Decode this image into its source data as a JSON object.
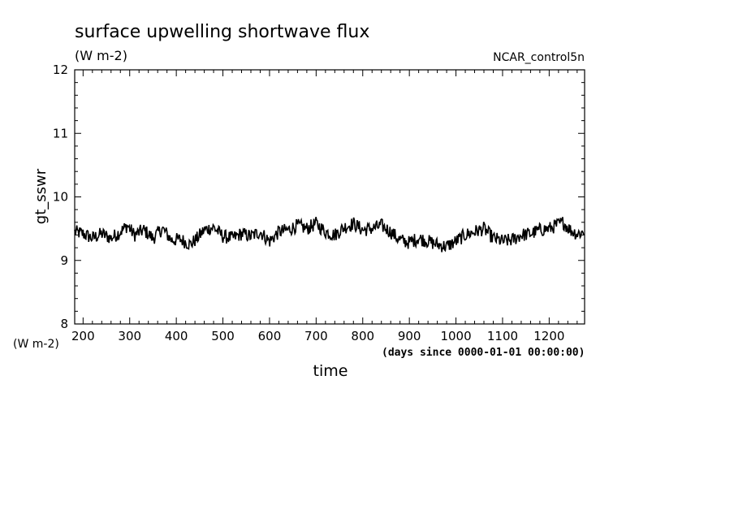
{
  "chart_data": {
    "type": "line",
    "title": "surface upwelling shortwave flux",
    "title_units": "(W m-2)",
    "dataset": "NCAR_control5n",
    "ylabel": "gt_sswr",
    "yunits": "(W m-2)",
    "xlabel": "time",
    "xunits": "(days since 0000-01-01 00:00:00)",
    "xlim": [
      182,
      1276
    ],
    "ylim": [
      8,
      12
    ],
    "x_ticks": [
      200,
      300,
      400,
      500,
      600,
      700,
      800,
      900,
      1000,
      1100,
      1200
    ],
    "y_ticks": [
      8,
      9,
      10,
      11,
      12
    ],
    "grid": false,
    "legend": "none",
    "line_color": "#000000",
    "series": [
      {
        "x": [
          182,
          200,
          220,
          240,
          260,
          280,
          295,
          310,
          330,
          350,
          370,
          390,
          410,
          430,
          445,
          460,
          480,
          500,
          520,
          540,
          560,
          580,
          600,
          620,
          640,
          660,
          680,
          700,
          720,
          740,
          760,
          780,
          800,
          820,
          840,
          860,
          880,
          900,
          920,
          940,
          960,
          980,
          1000,
          1020,
          1040,
          1060,
          1080,
          1100,
          1120,
          1140,
          1160,
          1180,
          1200,
          1215,
          1230,
          1245,
          1260,
          1276
        ],
        "values": [
          9.45,
          9.42,
          9.35,
          9.42,
          9.35,
          9.45,
          9.55,
          9.4,
          9.48,
          9.35,
          9.5,
          9.32,
          9.33,
          9.25,
          9.35,
          9.48,
          9.52,
          9.38,
          9.35,
          9.42,
          9.38,
          9.45,
          9.3,
          9.45,
          9.48,
          9.55,
          9.5,
          9.58,
          9.45,
          9.4,
          9.52,
          9.58,
          9.48,
          9.5,
          9.55,
          9.45,
          9.32,
          9.28,
          9.35,
          9.3,
          9.25,
          9.22,
          9.3,
          9.4,
          9.45,
          9.5,
          9.35,
          9.3,
          9.32,
          9.4,
          9.42,
          9.48,
          9.5,
          9.55,
          9.6,
          9.48,
          9.42,
          9.45
        ]
      }
    ]
  }
}
